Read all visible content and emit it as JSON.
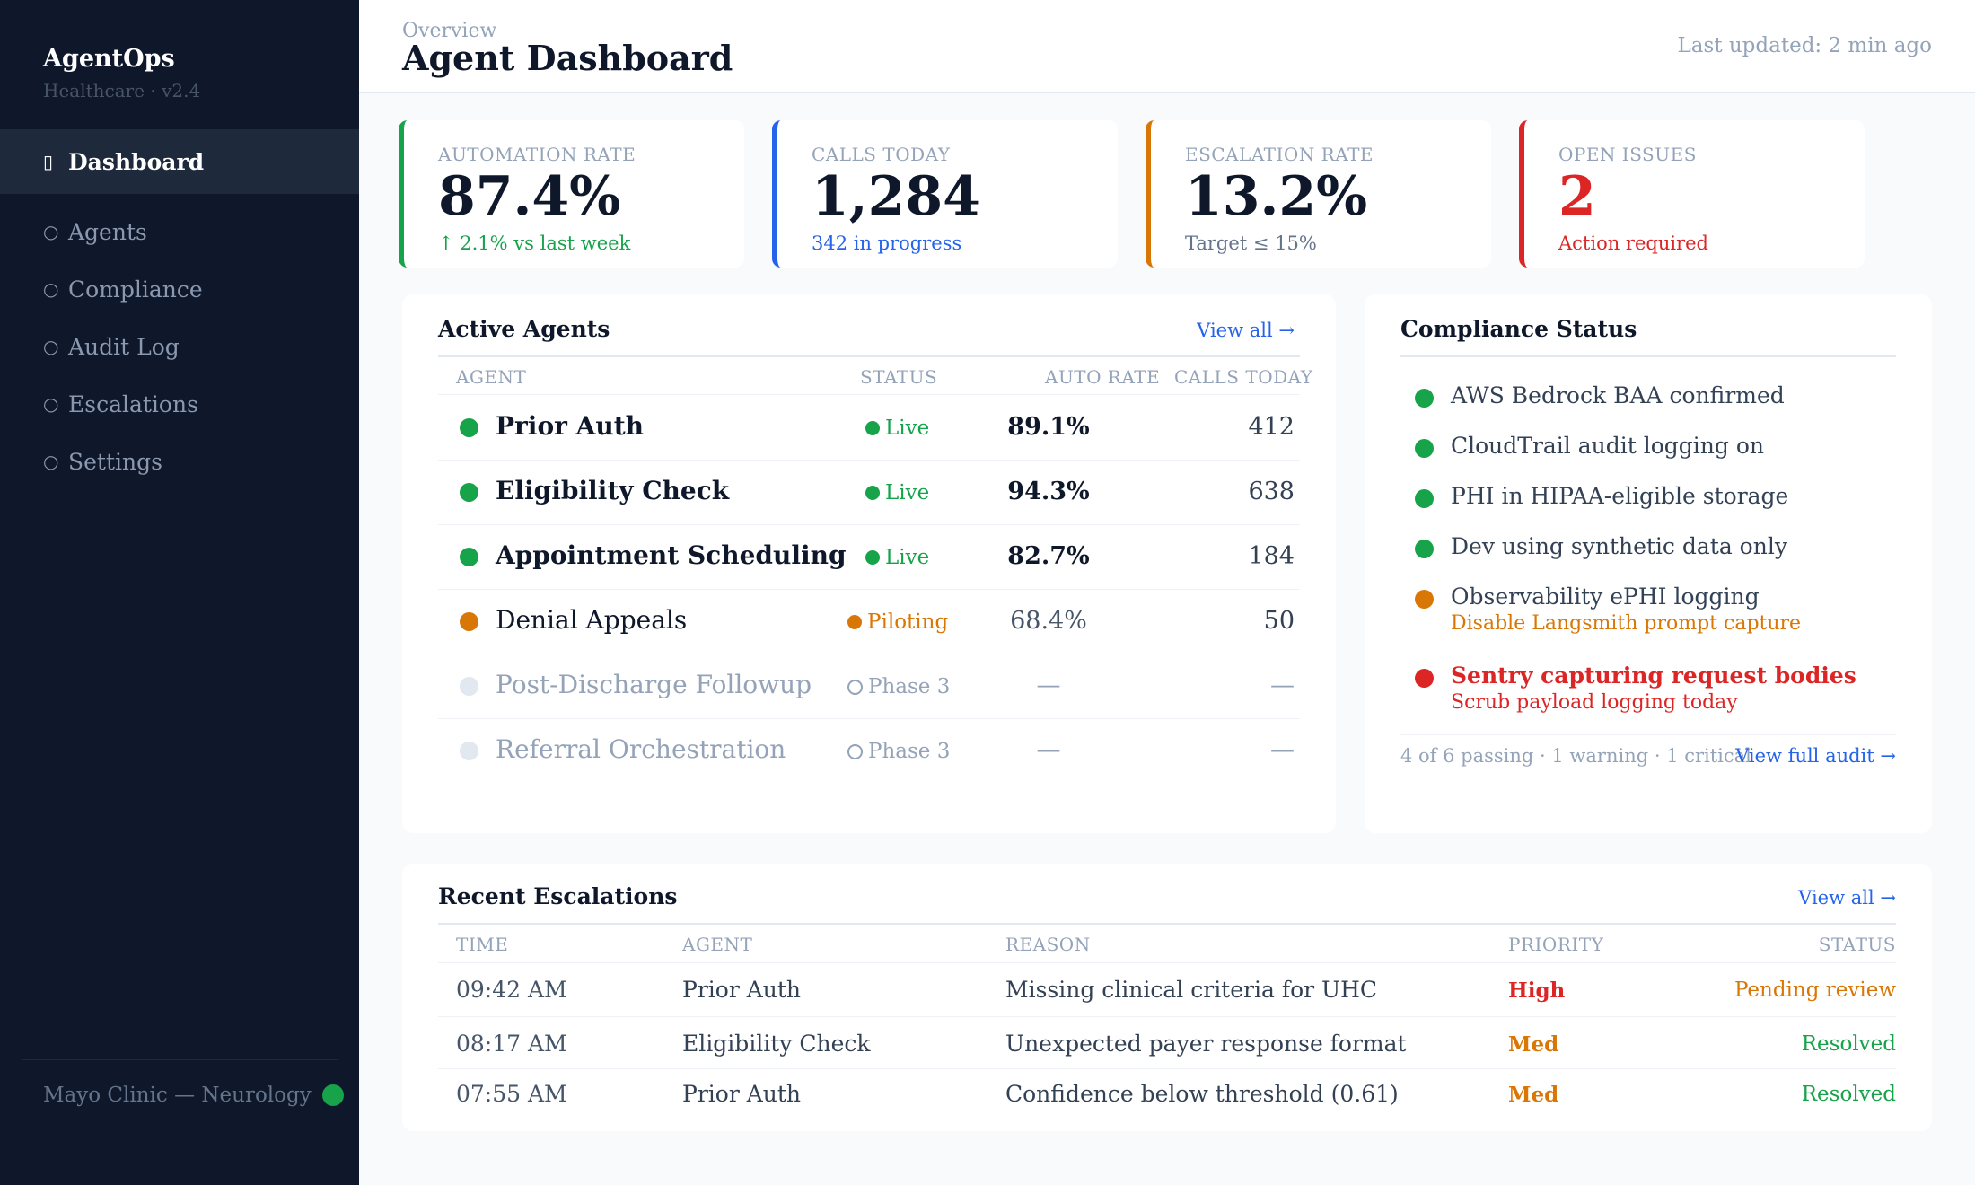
{
  "app": {
    "name": "AgentOps",
    "subtitle": "Healthcare · v2.4"
  },
  "nav": [
    {
      "label": "Dashboard",
      "icon": "dashboard-icon",
      "active": true
    },
    {
      "label": "Agents",
      "icon": "circle-icon"
    },
    {
      "label": "Compliance",
      "icon": "circle-icon"
    },
    {
      "label": "Audit Log",
      "icon": "circle-icon"
    },
    {
      "label": "Escalations",
      "icon": "circle-icon"
    },
    {
      "label": "Settings",
      "icon": "circle-icon"
    }
  ],
  "org": {
    "label": "Mayo Clinic — Neurology",
    "status_color": "#16a34a"
  },
  "header": {
    "breadcrumb": "Overview",
    "title": "Agent Dashboard",
    "last_updated": "Last updated: 2 min ago"
  },
  "kpis": [
    {
      "label": "AUTOMATION RATE",
      "value": "87.4%",
      "sub": "↑ 2.1% vs last week",
      "accent": "#16a34a",
      "sub_color": "#16a34a",
      "value_color": "#0f172a"
    },
    {
      "label": "CALLS TODAY",
      "value": "1,284",
      "sub": "342 in progress",
      "accent": "#2563eb",
      "sub_color": "#2563eb",
      "value_color": "#0f172a"
    },
    {
      "label": "ESCALATION RATE",
      "value": "13.2%",
      "sub": "Target ≤ 15%",
      "accent": "#d97706",
      "sub_color": "#64748b",
      "value_color": "#0f172a"
    },
    {
      "label": "OPEN ISSUES",
      "value": "2",
      "sub": "Action required",
      "accent": "#dc2626",
      "sub_color": "#dc2626",
      "value_color": "#dc2626"
    }
  ],
  "agents_panel": {
    "title": "Active Agents",
    "view_all": "View all →",
    "columns": {
      "agent": "AGENT",
      "status": "STATUS",
      "auto_rate": "AUTO RATE",
      "calls_today": "CALLS TODAY"
    },
    "rows": [
      {
        "name": "Prior Auth",
        "status": "Live",
        "rate": "89.1%",
        "calls": "412",
        "state": "live"
      },
      {
        "name": "Eligibility Check",
        "status": "Live",
        "rate": "94.3%",
        "calls": "638",
        "state": "live"
      },
      {
        "name": "Appointment Scheduling",
        "status": "Live",
        "rate": "82.7%",
        "calls": "184",
        "state": "live"
      },
      {
        "name": "Denial Appeals",
        "status": "Piloting",
        "rate": "68.4%",
        "calls": "50",
        "state": "pilot"
      },
      {
        "name": "Post-Discharge Followup",
        "status": "Phase 3",
        "rate": "—",
        "calls": "—",
        "state": "planned"
      },
      {
        "name": "Referral Orchestration",
        "status": "Phase 3",
        "rate": "—",
        "calls": "—",
        "state": "planned"
      }
    ]
  },
  "compliance_panel": {
    "title": "Compliance Status",
    "items": [
      {
        "text": "AWS Bedrock BAA confirmed",
        "level": "ok"
      },
      {
        "text": "CloudTrail audit logging on",
        "level": "ok"
      },
      {
        "text": "PHI in HIPAA-eligible storage",
        "level": "ok"
      },
      {
        "text": "Dev using synthetic data only",
        "level": "ok"
      },
      {
        "text": "Observability ePHI logging",
        "note": "Disable Langsmith prompt capture",
        "level": "warn"
      },
      {
        "text": "Sentry capturing request bodies",
        "note": "Scrub payload logging today",
        "level": "crit"
      }
    ],
    "summary": "4 of 6 passing · 1 warning · 1 critical",
    "view_full": "View full audit →"
  },
  "escalations_panel": {
    "title": "Recent Escalations",
    "view_all": "View all →",
    "columns": {
      "time": "TIME",
      "agent": "AGENT",
      "reason": "REASON",
      "priority": "PRIORITY",
      "status": "STATUS"
    },
    "rows": [
      {
        "time": "09:42 AM",
        "agent": "Prior Auth",
        "reason": "Missing clinical criteria for UHC",
        "priority": "High",
        "status": "Pending review",
        "priority_color": "#dc2626",
        "status_color": "#d97706"
      },
      {
        "time": "08:17 AM",
        "agent": "Eligibility Check",
        "reason": "Unexpected payer response format",
        "priority": "Med",
        "status": "Resolved",
        "priority_color": "#d97706",
        "status_color": "#16a34a"
      },
      {
        "time": "07:55 AM",
        "agent": "Prior Auth",
        "reason": "Confidence below threshold (0.61)",
        "priority": "Med",
        "status": "Resolved",
        "priority_color": "#d97706",
        "status_color": "#16a34a"
      }
    ]
  },
  "colors": {
    "ok": "#16a34a",
    "warn": "#d97706",
    "crit": "#dc2626",
    "planned": "#e2e8f0",
    "link": "#2563eb"
  }
}
